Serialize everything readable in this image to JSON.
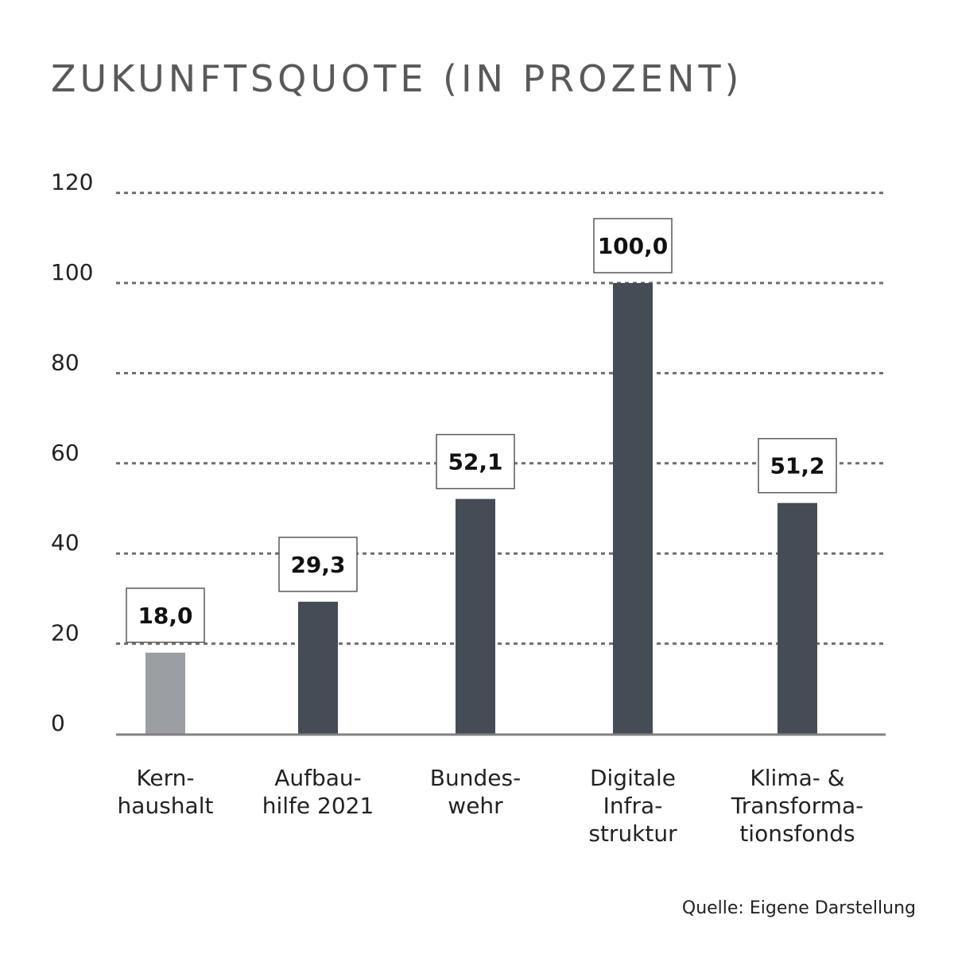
{
  "chart_data": {
    "type": "bar",
    "title": "ZUKUNFTSQUOTE (IN PROZENT)",
    "categories": [
      [
        "Kern-",
        "haushalt"
      ],
      [
        "Aufbau-",
        "hilfe 2021"
      ],
      [
        "Bundes-",
        "wehr"
      ],
      [
        "Digitale",
        "Infra-",
        "struktur"
      ],
      [
        "Klima- &",
        "Transforma-",
        "tionsfonds"
      ]
    ],
    "values": [
      18.0,
      29.3,
      52.1,
      100.0,
      51.2
    ],
    "data_labels": [
      "18,0",
      "29,3",
      "52,1",
      "100,0",
      "51,2"
    ],
    "bar_colors": [
      "#9b9ea2",
      "#454c56",
      "#454c56",
      "#454c56",
      "#454c56"
    ],
    "ylim": [
      0,
      120
    ],
    "yticks": [
      0,
      20,
      40,
      60,
      80,
      100,
      120
    ],
    "grid": true,
    "grid_style": "dotted",
    "source": "Quelle: Eigene Darstellung"
  }
}
